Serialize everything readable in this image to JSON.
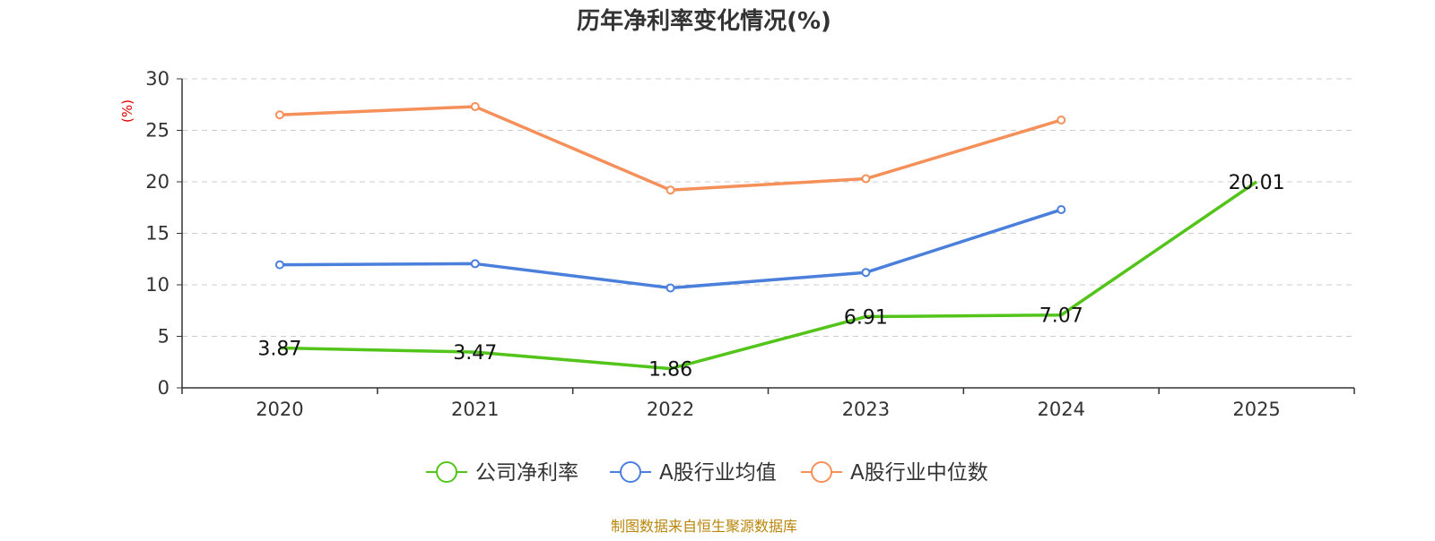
{
  "chart_data": {
    "type": "line",
    "title": "历年净利率变化情况(%)",
    "ylabel": "(%)",
    "xlabel": "",
    "categories": [
      "2020",
      "2021",
      "2022",
      "2023",
      "2024",
      "2025"
    ],
    "ylim": [
      0,
      30
    ],
    "yticks": [
      0,
      5,
      10,
      15,
      20,
      25,
      30
    ],
    "grid": true,
    "legend_position": "bottom-center",
    "series": [
      {
        "name": "公司净利率",
        "color": "#52c41a",
        "values": [
          3.87,
          3.47,
          1.86,
          6.91,
          7.07,
          20.01
        ],
        "labels": [
          "3.87",
          "3.47",
          "1.86",
          "6.91",
          "7.07",
          "20.01"
        ],
        "show_labels": true,
        "show_markers": false
      },
      {
        "name": "A股行业均值",
        "color": "#4a7fdb",
        "values": [
          11.95,
          12.05,
          9.7,
          11.2,
          17.3,
          null
        ],
        "show_labels": false,
        "show_markers": true
      },
      {
        "name": "A股行业中位数",
        "color": "#f5905a",
        "values": [
          26.5,
          27.3,
          19.2,
          20.3,
          26.0,
          null
        ],
        "show_labels": false,
        "show_markers": true
      }
    ]
  },
  "footer": {
    "source": "制图数据来自恒生聚源数据库",
    "color": "#b8860b"
  },
  "colors": {
    "axis": "#333333",
    "grid": "#cccccc",
    "ylabel": "#e00000"
  }
}
